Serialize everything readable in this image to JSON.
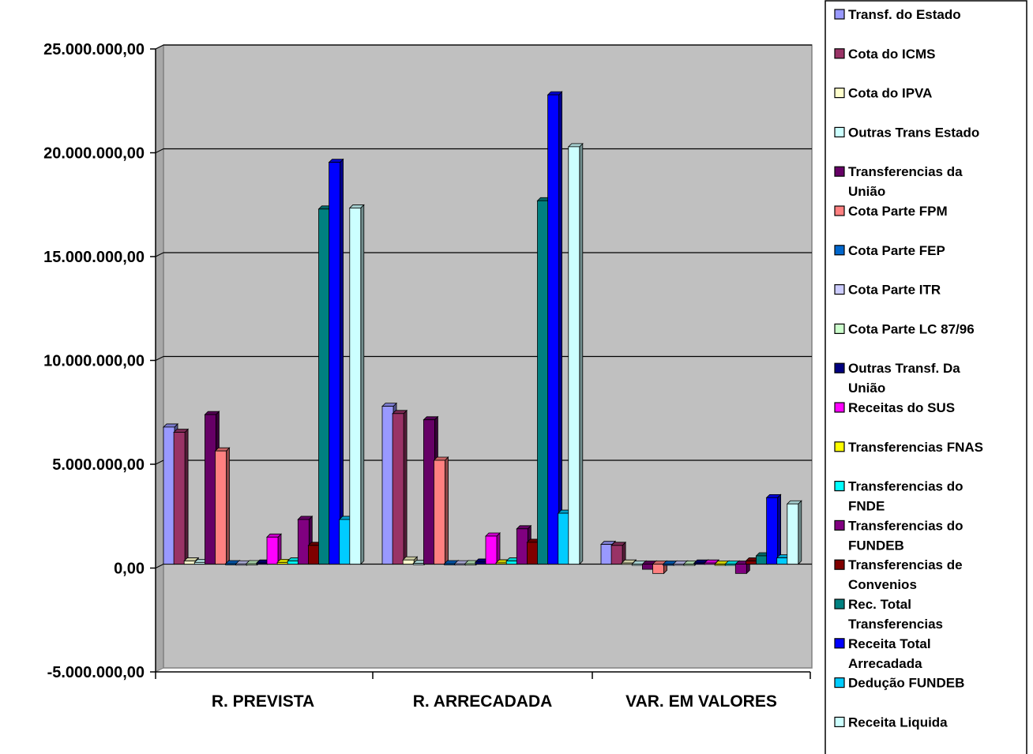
{
  "chart_data": {
    "type": "bar",
    "style": "3d-clustered-column",
    "categories": [
      "R. PREVISTA",
      "R. ARRECADADA",
      "VAR. EM VALORES"
    ],
    "ylim": [
      -5000000,
      25000000
    ],
    "yticks": [
      -5000000,
      0,
      5000000,
      10000000,
      15000000,
      20000000,
      25000000
    ],
    "ytick_labels": [
      "-5.000.000,00",
      "0,00",
      "5.000.000,00",
      "10.000.000,00",
      "15.000.000,00",
      "20.000.000,00",
      "25.000.000,00"
    ],
    "grid": true,
    "plot_background": "#c0c0c0",
    "legend_position": "right",
    "series": [
      {
        "name": "Transf. do Estado",
        "legend_lines": [
          "Transf. do Estado"
        ],
        "color": "#9999ff",
        "values": [
          6600000,
          7600000,
          950000
        ]
      },
      {
        "name": "Cota do ICMS",
        "legend_lines": [
          "   Cota do ICMS"
        ],
        "color": "#993366",
        "values": [
          6350000,
          7250000,
          900000
        ]
      },
      {
        "name": "Cota do IPVA",
        "legend_lines": [
          "   Cota do IPVA"
        ],
        "color": "#ffffcc",
        "values": [
          150000,
          200000,
          50000
        ]
      },
      {
        "name": "Outras Trans Estado",
        "legend_lines": [
          "Outras Trans Estado"
        ],
        "color": "#ccffff",
        "values": [
          80000,
          30000,
          -50000
        ]
      },
      {
        "name": "Transferencias da União",
        "legend_lines": [
          "Transferencias da",
          " União"
        ],
        "color": "#660066",
        "values": [
          7200000,
          6950000,
          -250000
        ]
      },
      {
        "name": "Cota Parte FPM",
        "legend_lines": [
          "Cota Parte FPM"
        ],
        "color": "#ff8080",
        "values": [
          5450000,
          5000000,
          -450000
        ]
      },
      {
        "name": "Cota Parte FEP",
        "legend_lines": [
          "Cota Parte FEP"
        ],
        "color": "#0066cc",
        "values": [
          20000,
          20000,
          0
        ]
      },
      {
        "name": "Cota Parte ITR",
        "legend_lines": [
          "Cota Parte ITR"
        ],
        "color": "#ccccff",
        "values": [
          10000,
          15000,
          5000
        ]
      },
      {
        "name": "Cota Parte LC 87/96",
        "legend_lines": [
          "Cota Parte LC 87/96"
        ],
        "color": "#ccffcc",
        "values": [
          20000,
          20000,
          0
        ]
      },
      {
        "name": "Outras Transf. Da União",
        "legend_lines": [
          "Outras Transf. Da",
          "União"
        ],
        "color": "#000080",
        "values": [
          50000,
          100000,
          50000
        ]
      },
      {
        "name": "Receitas do SUS",
        "legend_lines": [
          "Receitas do SUS"
        ],
        "color": "#ff00ff",
        "values": [
          1300000,
          1350000,
          50000
        ]
      },
      {
        "name": "Transferencias FNAS",
        "legend_lines": [
          "Transferencias FNAS"
        ],
        "color": "#ffff00",
        "values": [
          80000,
          60000,
          -20000
        ]
      },
      {
        "name": "Transferencias do FNDE",
        "legend_lines": [
          "Transferencias do",
          "FNDE"
        ],
        "color": "#00ffff",
        "values": [
          150000,
          150000,
          0
        ]
      },
      {
        "name": "Transferencias do FUNDEB",
        "legend_lines": [
          "Transferencias do",
          "FUNDEB"
        ],
        "color": "#800080",
        "values": [
          2150000,
          1700000,
          -450000
        ]
      },
      {
        "name": "Transferencias de Convenios",
        "legend_lines": [
          "Transferencias de",
          "Convenios"
        ],
        "color": "#800000",
        "values": [
          900000,
          1050000,
          150000
        ]
      },
      {
        "name": "Rec. Total Transferencias",
        "legend_lines": [
          "Rec. Total",
          "Transferencias"
        ],
        "color": "#008080",
        "values": [
          17100000,
          17500000,
          400000
        ]
      },
      {
        "name": "Receita Total Arrecadada",
        "legend_lines": [
          "Receita Total",
          "Arrecadada"
        ],
        "color": "#0000ff",
        "values": [
          19350000,
          22600000,
          3200000
        ]
      },
      {
        "name": "Dedução FUNDEB",
        "legend_lines": [
          "Dedução FUNDEB"
        ],
        "color": "#00ccff",
        "values": [
          2150000,
          2450000,
          300000
        ]
      },
      {
        "name": "Receita Liquida",
        "legend_lines": [
          "Receita Liquida"
        ],
        "color": "#ccffff",
        "values": [
          17150000,
          20100000,
          2900000
        ]
      }
    ]
  }
}
